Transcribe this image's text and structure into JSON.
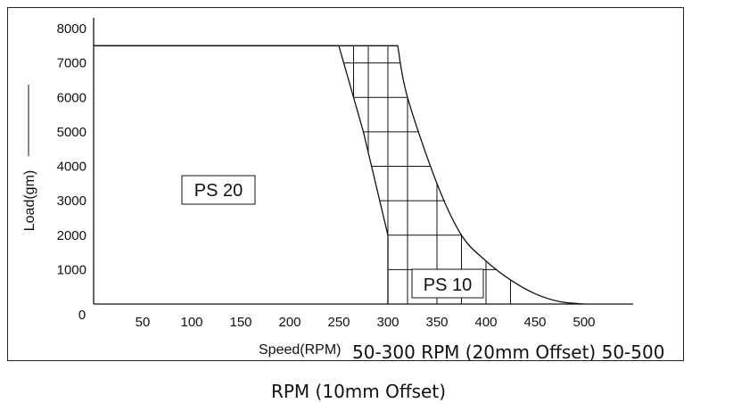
{
  "chart_data": {
    "type": "area",
    "xlabel": "Speed(RPM)",
    "ylabel": "Load(gm)",
    "xlim": [
      0,
      550
    ],
    "ylim": [
      0,
      8000
    ],
    "x_ticks": [
      50,
      100,
      150,
      200,
      250,
      300,
      350,
      400,
      450,
      500
    ],
    "y_ticks": [
      1000,
      2000,
      3000,
      4000,
      5000,
      6000,
      7000,
      8000
    ],
    "origin_label": "0",
    "grid": false,
    "series": [
      {
        "name": "PS 20",
        "points": [
          [
            0,
            7500
          ],
          [
            250,
            7500
          ],
          [
            265,
            6000
          ],
          [
            275,
            5000
          ],
          [
            300,
            2000
          ],
          [
            300,
            0
          ],
          [
            0,
            0
          ]
        ]
      },
      {
        "name": "PS 10",
        "points": [
          [
            0,
            0
          ],
          [
            0,
            7500
          ],
          [
            310,
            7500
          ],
          [
            320,
            6000
          ],
          [
            350,
            3500
          ],
          [
            375,
            2000
          ],
          [
            400,
            1250
          ],
          [
            425,
            700
          ],
          [
            450,
            300
          ],
          [
            475,
            70
          ],
          [
            500,
            0
          ],
          [
            550,
            0
          ]
        ]
      }
    ],
    "hatch": {
      "vertical_x": [
        265,
        280,
        300,
        320,
        350,
        375,
        400,
        425
      ],
      "horizontal_y": [
        1000,
        2000,
        3000,
        4000,
        5000,
        6000,
        7000
      ]
    }
  },
  "caption": {
    "line1": "50-300 RPM (20mm Offset) 50-500",
    "line2": "RPM (10mm Offset)"
  }
}
